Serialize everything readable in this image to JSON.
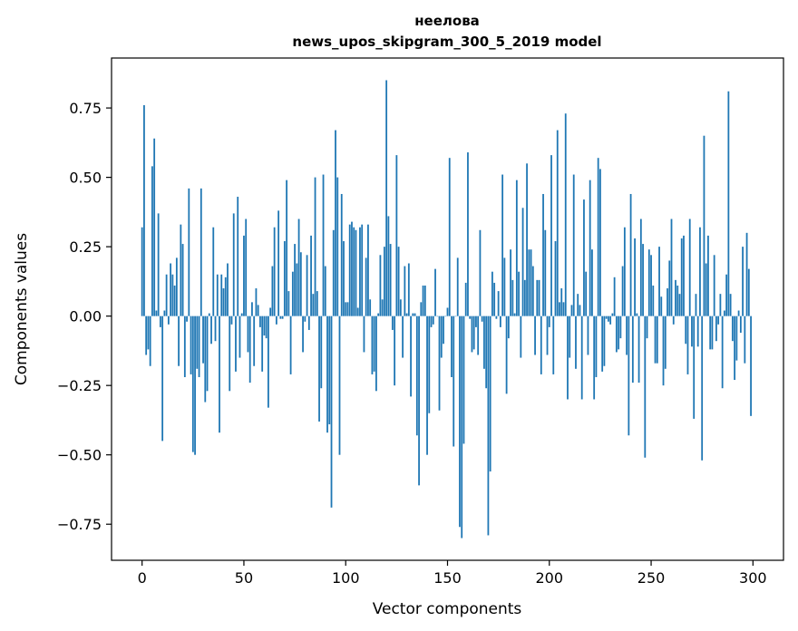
{
  "chart_data": {
    "type": "bar",
    "title_line1": "неелова",
    "title_line2": "news_upos_skipgram_300_5_2019 model",
    "xlabel": "Vector components",
    "ylabel": "Components values",
    "xlim": [
      -15,
      315
    ],
    "ylim": [
      -0.88,
      0.93
    ],
    "x_ticks": [
      0,
      50,
      100,
      150,
      200,
      250,
      300
    ],
    "x_tick_labels": [
      "0",
      "50",
      "100",
      "150",
      "200",
      "250",
      "300"
    ],
    "y_ticks": [
      -0.75,
      -0.5,
      -0.25,
      0.0,
      0.25,
      0.5,
      0.75
    ],
    "y_tick_labels": [
      "−0.75",
      "−0.50",
      "−0.25",
      "0.00",
      "0.25",
      "0.50",
      "0.75"
    ],
    "bar_color": "#1f77b4",
    "values": [
      0.32,
      0.76,
      -0.14,
      -0.12,
      -0.18,
      0.54,
      0.64,
      0.02,
      0.37,
      -0.04,
      -0.45,
      0.02,
      0.15,
      -0.03,
      0.19,
      0.15,
      0.11,
      0.21,
      -0.18,
      0.33,
      0.26,
      -0.22,
      -0.02,
      0.46,
      -0.21,
      -0.49,
      -0.5,
      -0.19,
      -0.22,
      0.46,
      -0.17,
      -0.31,
      -0.27,
      0.01,
      -0.1,
      0.32,
      -0.09,
      0.15,
      -0.42,
      0.15,
      0.1,
      0.14,
      0.19,
      -0.27,
      -0.03,
      0.37,
      -0.2,
      0.43,
      -0.15,
      0.01,
      0.29,
      0.35,
      -0.13,
      -0.24,
      0.05,
      -0.18,
      0.1,
      0.04,
      -0.04,
      -0.2,
      -0.07,
      -0.08,
      -0.33,
      0.03,
      0.18,
      0.32,
      -0.03,
      0.38,
      -0.01,
      -0.01,
      0.27,
      0.49,
      0.09,
      -0.21,
      0.16,
      0.26,
      0.19,
      0.35,
      0.23,
      -0.13,
      -0.02,
      0.22,
      -0.05,
      0.29,
      0.08,
      0.5,
      0.09,
      -0.38,
      -0.26,
      0.51,
      0.18,
      -0.42,
      -0.39,
      -0.69,
      0.31,
      0.67,
      0.5,
      -0.5,
      0.44,
      0.27,
      0.05,
      0.05,
      0.33,
      0.34,
      0.32,
      0.31,
      0.03,
      0.32,
      0.33,
      -0.13,
      0.21,
      0.33,
      0.06,
      -0.21,
      -0.2,
      -0.27,
      0.01,
      0.22,
      0.06,
      0.25,
      0.85,
      0.36,
      0.26,
      -0.05,
      -0.25,
      0.58,
      0.25,
      0.06,
      -0.15,
      0.18,
      0.01,
      0.19,
      -0.29,
      0.01,
      0.01,
      -0.43,
      -0.61,
      0.05,
      0.11,
      0.11,
      -0.5,
      -0.35,
      -0.04,
      -0.03,
      0.17,
      0.0,
      -0.34,
      -0.15,
      -0.1,
      0.0,
      0.03,
      0.57,
      -0.22,
      -0.47,
      0.0,
      0.21,
      -0.76,
      -0.8,
      -0.46,
      0.12,
      0.59,
      -0.01,
      -0.13,
      -0.12,
      -0.04,
      -0.14,
      0.31,
      -0.02,
      -0.19,
      -0.26,
      -0.79,
      -0.56,
      0.16,
      0.12,
      -0.01,
      0.09,
      -0.04,
      0.51,
      0.21,
      -0.28,
      -0.08,
      0.24,
      0.13,
      0.01,
      0.49,
      0.16,
      -0.15,
      0.39,
      0.13,
      0.55,
      0.24,
      0.24,
      0.18,
      -0.14,
      0.13,
      0.13,
      -0.21,
      0.44,
      0.31,
      -0.14,
      -0.04,
      0.58,
      -0.21,
      0.27,
      0.67,
      0.05,
      0.1,
      0.05,
      0.73,
      -0.3,
      -0.15,
      0.04,
      0.51,
      -0.19,
      0.08,
      0.04,
      -0.3,
      0.42,
      0.16,
      -0.14,
      0.49,
      0.24,
      -0.3,
      -0.22,
      0.57,
      0.53,
      -0.2,
      -0.18,
      -0.01,
      -0.02,
      -0.03,
      0.01,
      0.14,
      -0.13,
      -0.12,
      -0.08,
      0.18,
      0.32,
      -0.14,
      -0.43,
      0.44,
      -0.24,
      0.28,
      0.01,
      -0.24,
      0.35,
      0.26,
      -0.51,
      -0.08,
      0.24,
      0.22,
      0.11,
      -0.17,
      -0.17,
      0.25,
      0.07,
      -0.25,
      -0.19,
      0.1,
      0.2,
      0.35,
      -0.03,
      0.13,
      0.11,
      0.08,
      0.28,
      0.29,
      -0.1,
      -0.21,
      0.35,
      -0.11,
      -0.37,
      0.08,
      -0.11,
      0.32,
      -0.52,
      0.65,
      0.19,
      0.29,
      -0.12,
      -0.12,
      0.22,
      -0.09,
      -0.03,
      0.08,
      -0.26,
      0.02,
      0.15,
      0.81,
      0.08,
      -0.09,
      -0.23,
      -0.16,
      0.02,
      -0.06,
      0.25,
      -0.17,
      0.3,
      0.17,
      -0.36
    ]
  }
}
